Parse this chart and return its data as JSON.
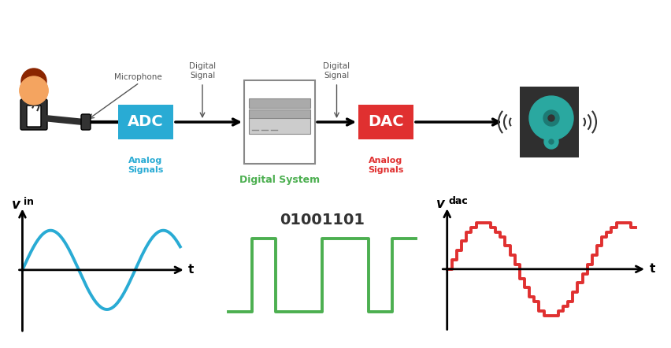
{
  "bg_color": "#ffffff",
  "adc_color": "#29ABD4",
  "dac_color": "#E03030",
  "digital_system_color": "#4CAF50",
  "analog_signals_left_color": "#29ABD4",
  "analog_signals_right_color": "#E03030",
  "digital_signal_label_color": "#555555",
  "microphone_label_color": "#555555",
  "sin_color": "#29ABD4",
  "digital_wave_color": "#4CAF50",
  "dac_wave_color": "#E03030",
  "binary_text": "01001101",
  "binary_color": "#333333",
  "title_top": "",
  "adc_label": "ADC",
  "dac_label": "DAC",
  "digital_system_label": "Digital System",
  "analog_signals_label": "Analog\nSignals",
  "microphone_label": "Microphone",
  "digital_signal_label": "Digital\nSignal",
  "vin_label": "v",
  "vin_sub": "in",
  "vdac_label": "v",
  "vdac_sub": "dac",
  "t_label": "t",
  "line_lw": 2.5,
  "wave_lw": 2.8
}
